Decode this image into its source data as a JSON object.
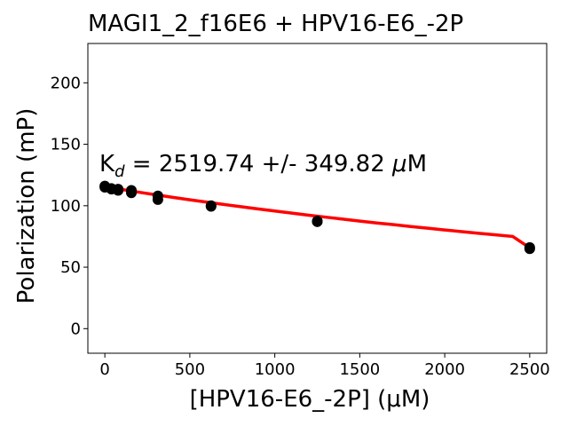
{
  "chart_data": {
    "type": "scatter",
    "title": "MAGI1_2_f16E6 + HPV16-E6_-2P",
    "xlabel": "[HPV16-E6_-2P] (μM)",
    "ylabel": "Polarization (mP)",
    "xlim": [
      -100,
      2600
    ],
    "ylim": [
      -20,
      232
    ],
    "x_ticks": [
      0,
      500,
      1000,
      1500,
      2000,
      2500
    ],
    "y_ticks": [
      0,
      50,
      100,
      150,
      200
    ],
    "x_tick_labels": [
      "0",
      "500",
      "1000",
      "1500",
      "2000",
      "2500"
    ],
    "y_tick_labels": [
      "0",
      "50",
      "100",
      "150",
      "200"
    ],
    "grid": false,
    "annotation": {
      "prefix": "K",
      "subscript": "d",
      "text": " = 2519.74 +/- 349.82 ",
      "mu": "μ",
      "unit": "M"
    },
    "points": [
      {
        "x": 0,
        "y": 116
      },
      {
        "x": 0,
        "y": 115
      },
      {
        "x": 39,
        "y": 114
      },
      {
        "x": 39,
        "y": 113.5
      },
      {
        "x": 78,
        "y": 113.5
      },
      {
        "x": 78,
        "y": 112.5
      },
      {
        "x": 156,
        "y": 112.5
      },
      {
        "x": 156,
        "y": 110.5
      },
      {
        "x": 312,
        "y": 108
      },
      {
        "x": 312,
        "y": 105
      },
      {
        "x": 625,
        "y": 100
      },
      {
        "x": 625,
        "y": 99.5
      },
      {
        "x": 1250,
        "y": 87.5
      },
      {
        "x": 1250,
        "y": 87
      },
      {
        "x": 2500,
        "y": 66
      },
      {
        "x": 2500,
        "y": 65
      }
    ],
    "fit": {
      "color": "#ff0000",
      "x": [
        0,
        100,
        200,
        300,
        400,
        500,
        600,
        700,
        800,
        900,
        1000,
        1100,
        1200,
        1300,
        1400,
        1500,
        1600,
        1700,
        1800,
        1900,
        2000,
        2100,
        2200,
        2300,
        2400,
        2500
      ],
      "y": [
        115.5,
        113.2,
        111.0,
        108.9,
        106.8,
        104.8,
        102.9,
        101.0,
        99.2,
        97.4,
        95.7,
        94.0,
        92.3,
        90.7,
        89.1,
        87.5,
        86.0,
        84.6,
        83.1,
        81.7,
        80.3,
        78.9,
        77.6,
        76.3,
        75.0,
        65.8
      ]
    },
    "point_color": "#000000"
  }
}
